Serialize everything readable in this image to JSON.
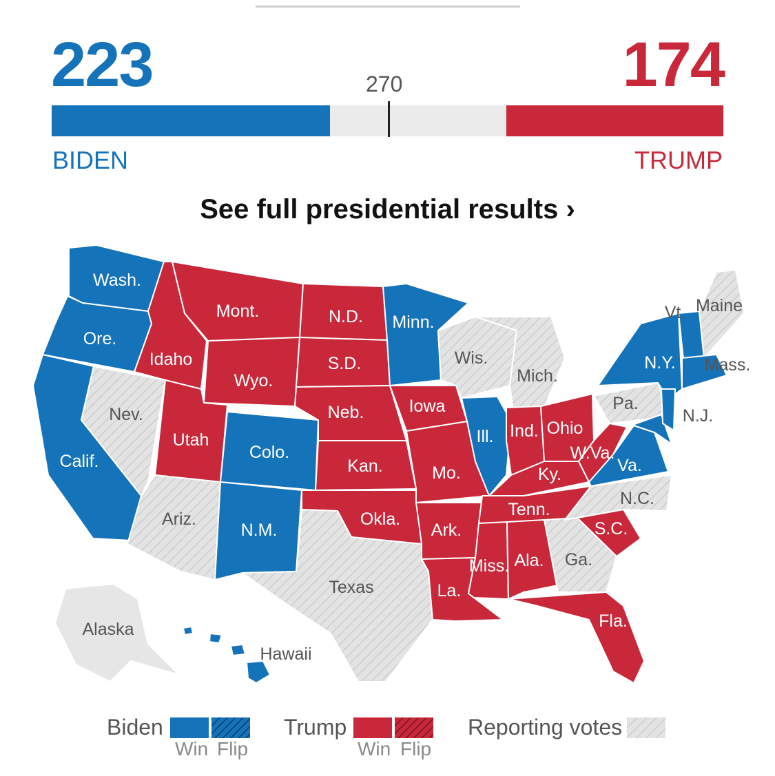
{
  "header": {
    "biden_votes": "223",
    "trump_votes": "174",
    "threshold": "270",
    "biden_name": "BIDEN",
    "trump_name": "TRUMP",
    "cta": "See full presidential results ›"
  },
  "progress": {
    "total": 538,
    "biden": 223,
    "trump": 174,
    "threshold": 270
  },
  "colors": {
    "biden": "#1573ba",
    "trump": "#c8283a",
    "reporting": "#e2e2e2",
    "neutral_bar": "#ebebeb"
  },
  "map_labels": {
    "wash": "Wash.",
    "ore": "Ore.",
    "calif": "Calif.",
    "nev": "Nev.",
    "idaho": "Idaho",
    "mont": "Mont.",
    "wyo": "Wyo.",
    "utah": "Utah",
    "colo": "Colo.",
    "ariz": "Ariz.",
    "nm": "N.M.",
    "nd": "N.D.",
    "sd": "S.D.",
    "neb": "Neb.",
    "kan": "Kan.",
    "okla": "Okla.",
    "texas": "Texas",
    "minn": "Minn.",
    "iowa": "Iowa",
    "mo": "Mo.",
    "ark": "Ark.",
    "la": "La.",
    "wis": "Wis.",
    "ill": "Ill.",
    "mich": "Mich.",
    "ind": "Ind.",
    "ohio": "Ohio",
    "ky": "Ky.",
    "tenn": "Tenn.",
    "miss": "Miss.",
    "ala": "Ala.",
    "ga": "Ga.",
    "fla": "Fla.",
    "sc": "S.C.",
    "nc": "N.C.",
    "va": "Va.",
    "wva": "W.Va.",
    "pa": "Pa.",
    "ny": "N.Y.",
    "nj": "N.J.",
    "vt": "Vt.",
    "maine": "Maine",
    "mass": "Mass.",
    "alaska": "Alaska",
    "hawaii": "Hawaii"
  },
  "legend": {
    "biden": "Biden",
    "trump": "Trump",
    "reporting": "Reporting votes",
    "win": "Win",
    "flip": "Flip"
  }
}
